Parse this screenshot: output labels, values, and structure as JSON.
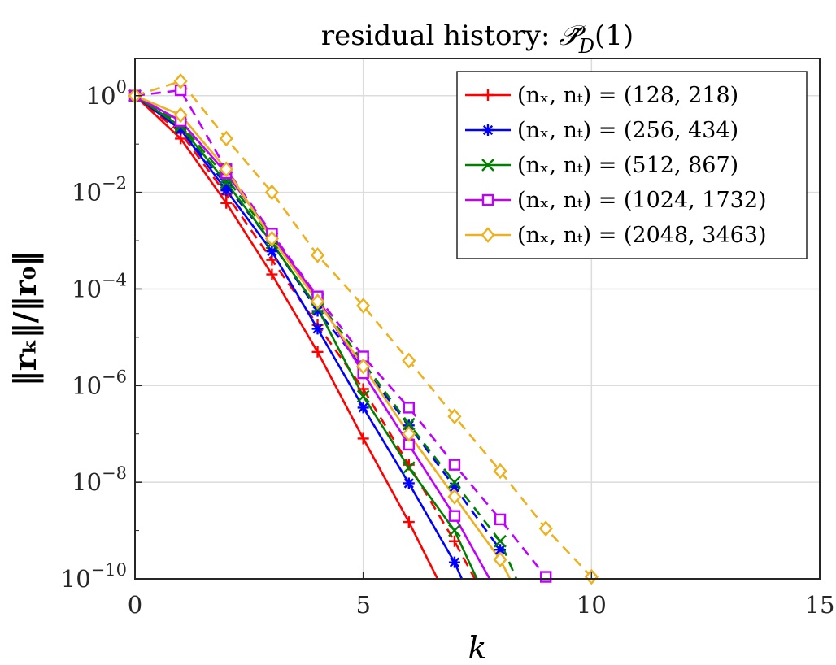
{
  "chart_data": {
    "type": "line",
    "title": "residual history: P̃_D(1)",
    "title_prefix": "residual history: ",
    "title_math": "𝒫̃",
    "title_sub": "D",
    "title_arg": "(1)",
    "xlabel": "k",
    "ylabel": "||r_k|| / ||r_0||",
    "ylabel_display": "‖rₖ‖/‖r₀‖",
    "xlim": [
      0,
      15
    ],
    "ylim": [
      1e-10,
      10
    ],
    "yscale": "log",
    "grid": true,
    "legend_position": "top-right",
    "x_ticks": [
      0,
      5,
      10,
      15
    ],
    "x_tick_labels": [
      "0",
      "5",
      "10",
      "15"
    ],
    "y_ticks": [
      1,
      0.01,
      0.0001,
      1e-06,
      1e-08,
      1e-10
    ],
    "y_tick_labels": [
      {
        "base": "10",
        "exp": "0"
      },
      {
        "base": "10",
        "exp": "−2"
      },
      {
        "base": "10",
        "exp": "−4"
      },
      {
        "base": "10",
        "exp": "−6"
      },
      {
        "base": "10",
        "exp": "−8"
      },
      {
        "base": "10",
        "exp": "−10"
      }
    ],
    "series": [
      {
        "name": "(n_x, n_t) = (128, 218)",
        "legend_label": "(nₓ, nₜ) = (128, 218)",
        "color": "#ff0000",
        "marker": "plus",
        "linestyle": "solid",
        "x": [
          0,
          1,
          2,
          3,
          4,
          5,
          6,
          7
        ],
        "y": [
          1,
          0.13,
          0.006,
          0.0002,
          5e-06,
          8e-08,
          1.5e-09,
          2e-11
        ]
      },
      {
        "name": "(n_x, n_t) = (128, 218)",
        "color": "#ff0000",
        "marker": "plus",
        "linestyle": "dashed",
        "legend": false,
        "x": [
          0,
          1,
          2,
          3,
          4,
          5,
          6,
          7,
          7.5
        ],
        "y": [
          1,
          0.17,
          0.009,
          0.0004,
          1.8e-05,
          8.5e-07,
          2.3e-08,
          6e-10,
          8e-11
        ]
      },
      {
        "name": "(n_x, n_t) = (256, 434)",
        "legend_label": "(nₓ, nₜ) = (256, 434)",
        "color": "#0000ff",
        "marker": "asterisk",
        "linestyle": "solid",
        "x": [
          0,
          1,
          2,
          3,
          4,
          5,
          6,
          7,
          7.3
        ],
        "y": [
          1,
          0.2,
          0.011,
          0.0006,
          1.5e-05,
          3.5e-07,
          9.5e-09,
          2.2e-10,
          5e-11
        ]
      },
      {
        "name": "(n_x, n_t) = (256, 434)",
        "color": "#0000ff",
        "marker": "asterisk",
        "linestyle": "dashed",
        "legend": false,
        "x": [
          0,
          1,
          2,
          3,
          4,
          5,
          6,
          7,
          8
        ],
        "y": [
          1,
          0.22,
          0.014,
          0.0009,
          3.5e-05,
          2.4e-06,
          1.5e-07,
          8e-09,
          4e-10
        ]
      },
      {
        "name": "(n_x, n_t) = (512, 867)",
        "legend_label": "(nₓ, nₜ) = (512, 867)",
        "color": "#008000",
        "marker": "cross",
        "linestyle": "solid",
        "x": [
          0,
          1,
          2,
          3,
          4,
          5,
          6,
          7,
          7.6
        ],
        "y": [
          1,
          0.23,
          0.016,
          0.0009,
          4e-05,
          6e-07,
          2e-08,
          1e-09,
          6e-11
        ]
      },
      {
        "name": "(n_x, n_t) = (512, 867)",
        "color": "#008000",
        "marker": "cross",
        "linestyle": "dashed",
        "legend": false,
        "x": [
          0,
          1,
          2,
          3,
          4,
          5,
          6,
          7,
          8,
          8.4
        ],
        "y": [
          1,
          0.26,
          0.02,
          0.0011,
          6e-05,
          3e-06,
          1.6e-07,
          1e-08,
          6e-10,
          8e-11
        ]
      },
      {
        "name": "(n_x, n_t) = (1024, 1732)",
        "legend_label": "(nₓ, nₜ) = (1024, 1732)",
        "color": "#bf00ff",
        "marker": "square",
        "linestyle": "solid",
        "x": [
          0,
          1,
          2,
          3,
          4,
          5,
          6,
          7,
          7.9
        ],
        "y": [
          1,
          0.3,
          0.025,
          0.0013,
          6.5e-05,
          1.8e-06,
          6e-08,
          2e-09,
          6e-11
        ]
      },
      {
        "name": "(n_x, n_t) = (1024, 1732)",
        "color": "#bf00ff",
        "marker": "square",
        "linestyle": "dashed",
        "legend": false,
        "x": [
          0,
          1,
          2,
          3,
          4,
          5,
          6,
          7,
          8,
          9,
          9.2
        ],
        "y": [
          1,
          1.3,
          0.03,
          0.0014,
          7e-05,
          4e-06,
          3.5e-07,
          2.3e-08,
          1.7e-09,
          1.1e-10,
          1.1e-10
        ]
      },
      {
        "name": "(n_x, n_t) = (2048, 3463)",
        "legend_label": "(nₓ, nₜ) = (2048, 3463)",
        "color": "#edb120",
        "marker": "diamond",
        "linestyle": "solid",
        "x": [
          0,
          1,
          2,
          3,
          4,
          5,
          6,
          7,
          8,
          8.3
        ],
        "y": [
          1,
          0.4,
          0.03,
          0.0011,
          5.5e-05,
          2.5e-06,
          1e-07,
          5e-09,
          2.5e-10,
          7e-11
        ]
      },
      {
        "name": "(n_x, n_t) = (2048, 3463)",
        "color": "#edb120",
        "marker": "diamond",
        "linestyle": "dashed",
        "legend": false,
        "x": [
          0,
          1,
          2,
          3,
          4,
          5,
          6,
          7,
          8,
          9,
          10
        ],
        "y": [
          1,
          2,
          0.13,
          0.01,
          0.0005,
          4.5e-05,
          3.3e-06,
          2.3e-07,
          1.7e-08,
          1.1e-09,
          1.1e-10
        ]
      }
    ]
  }
}
